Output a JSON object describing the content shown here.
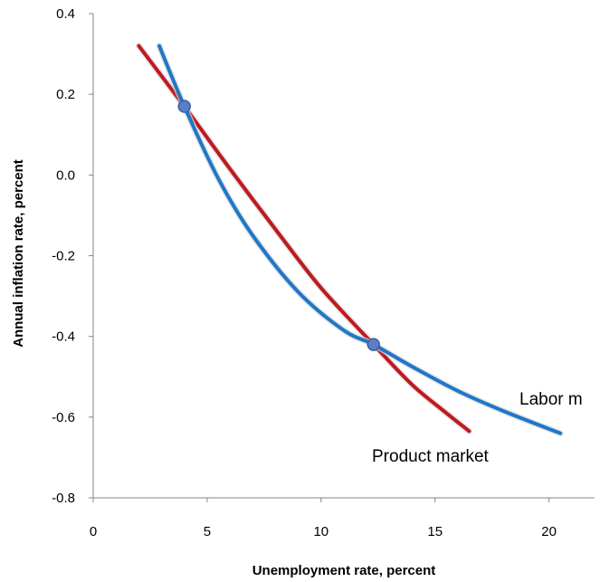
{
  "chart_data": {
    "type": "line",
    "xlabel": "Unemployment rate, percent",
    "ylabel": "Annual inflation rate, percent",
    "xlim": [
      0,
      22
    ],
    "ylim": [
      -0.8,
      0.4
    ],
    "x_ticks": [
      {
        "value": 0,
        "label": "0"
      },
      {
        "value": 5,
        "label": "5"
      },
      {
        "value": 10,
        "label": "10"
      },
      {
        "value": 15,
        "label": "15"
      },
      {
        "value": 20,
        "label": "20"
      }
    ],
    "y_ticks": [
      {
        "value": 0.4,
        "label": "0.4"
      },
      {
        "value": 0.2,
        "label": "0.2"
      },
      {
        "value": 0.0,
        "label": "0.0"
      },
      {
        "value": -0.2,
        "label": "-0.2"
      },
      {
        "value": -0.4,
        "label": "-0.4"
      },
      {
        "value": -0.6,
        "label": "-0.6"
      },
      {
        "value": -0.8,
        "label": "-0.8"
      }
    ],
    "grid": false,
    "series": [
      {
        "name": "Product market",
        "color": "#c0191f",
        "x": [
          2.0,
          4.0,
          6.0,
          8.0,
          10.0,
          12.3,
          14.0,
          15.5,
          16.5
        ],
        "y": [
          0.32,
          0.17,
          0.015,
          -0.135,
          -0.28,
          -0.42,
          -0.52,
          -0.59,
          -0.635
        ]
      },
      {
        "name": "Labor m",
        "color": "#1f77c8",
        "x": [
          2.9,
          4.0,
          5.5,
          7.0,
          9.0,
          11.0,
          12.3,
          14.0,
          16.0,
          18.0,
          20.5
        ],
        "y": [
          0.32,
          0.17,
          -0.01,
          -0.15,
          -0.29,
          -0.385,
          -0.42,
          -0.475,
          -0.535,
          -0.585,
          -0.64
        ]
      }
    ],
    "intersections": [
      {
        "x": 4.0,
        "y": 0.17
      },
      {
        "x": 12.3,
        "y": -0.42
      }
    ],
    "marker_color": "#5a7fc6"
  }
}
